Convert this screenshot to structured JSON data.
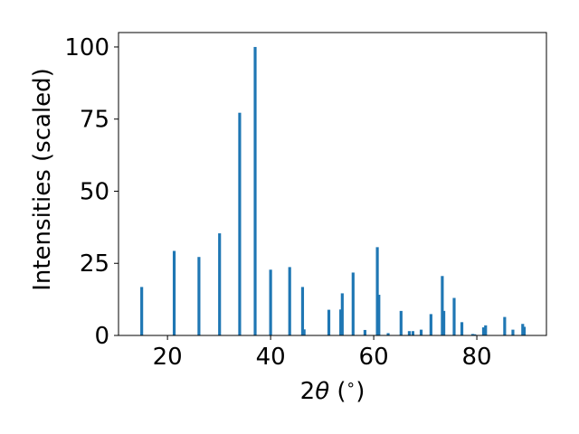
{
  "chart_data": {
    "type": "bar",
    "title": "",
    "xlabel_main": "2",
    "xlabel_theta": "θ",
    "xlabel_tail": " (",
    "xlabel_deg": "∘",
    "xlabel_close": ")",
    "ylabel": "Intensities (scaled)",
    "xlim": [
      10.5,
      93.5
    ],
    "ylim": [
      0,
      105
    ],
    "xticks": [
      20,
      40,
      60,
      80
    ],
    "yticks": [
      0,
      25,
      50,
      75,
      100
    ],
    "grid": false,
    "bar_color": "#1f77b4",
    "bar_width": 0.75,
    "x": [
      15.0,
      21.3,
      26.1,
      30.1,
      34.0,
      37.0,
      40.0,
      43.7,
      46.2,
      46.5,
      51.3,
      53.6,
      53.9,
      56.0,
      58.3,
      60.7,
      61.0,
      62.8,
      65.3,
      66.9,
      67.6,
      69.2,
      71.1,
      73.3,
      73.6,
      75.6,
      77.1,
      79.2,
      79.6,
      81.3,
      81.7,
      85.4,
      87.0,
      88.9,
      89.2
    ],
    "values": [
      16.8,
      29.3,
      27.2,
      35.4,
      77.2,
      100.0,
      22.8,
      23.7,
      16.8,
      2.1,
      8.9,
      9.0,
      14.6,
      21.8,
      1.9,
      30.6,
      14.1,
      0.8,
      8.5,
      1.5,
      1.5,
      2.0,
      7.4,
      20.6,
      8.5,
      13.0,
      4.6,
      0.5,
      0.4,
      2.8,
      3.5,
      6.4,
      2.0,
      4.0,
      3.0
    ]
  }
}
